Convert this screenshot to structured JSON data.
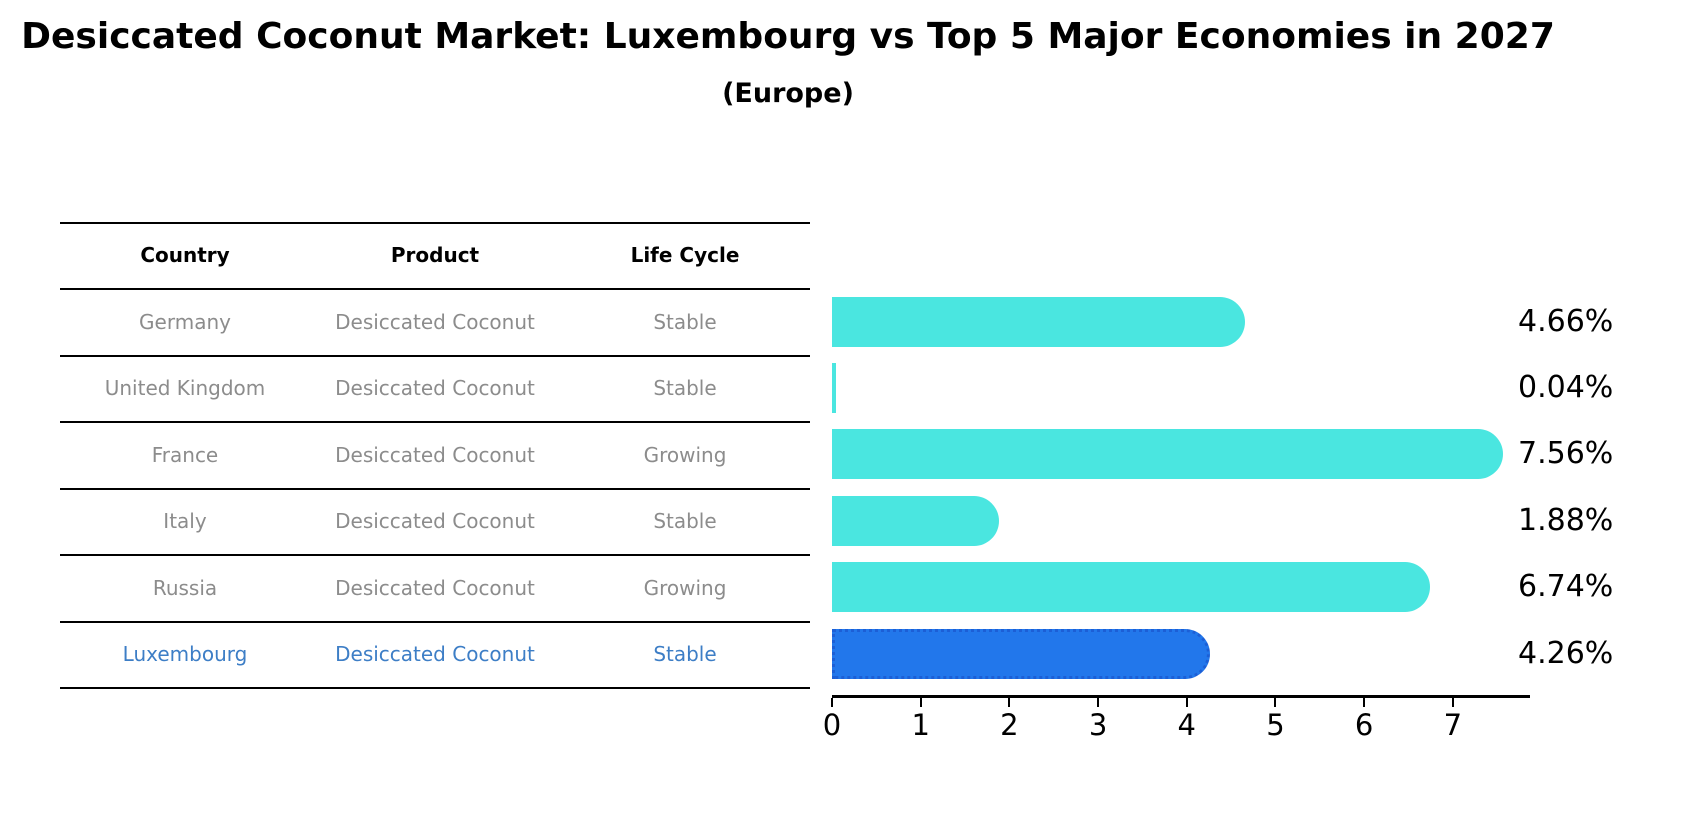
{
  "title": "Desiccated Coconut Market: Luxembourg vs Top 5 Major Economies in 2027",
  "subtitle": "(Europe)",
  "table": {
    "headers": {
      "country": "Country",
      "product": "Product",
      "life_cycle": "Life Cycle"
    },
    "rows": [
      {
        "country": "Germany",
        "product": "Desiccated Coconut",
        "life_cycle": "Stable",
        "highlight": false
      },
      {
        "country": "United Kingdom",
        "product": "Desiccated Coconut",
        "life_cycle": "Stable",
        "highlight": false
      },
      {
        "country": "France",
        "product": "Desiccated Coconut",
        "life_cycle": "Growing",
        "highlight": false
      },
      {
        "country": "Italy",
        "product": "Desiccated Coconut",
        "life_cycle": "Stable",
        "highlight": false
      },
      {
        "country": "Russia",
        "product": "Desiccated Coconut",
        "life_cycle": "Growing",
        "highlight": false
      },
      {
        "country": "Luxembourg",
        "product": "Desiccated Coconut",
        "life_cycle": "Stable",
        "highlight": true
      }
    ]
  },
  "chart_data": {
    "type": "bar",
    "orientation": "horizontal",
    "title": "",
    "xlabel": "",
    "ylabel": "",
    "categories": [
      "Germany",
      "United Kingdom",
      "France",
      "Italy",
      "Russia",
      "Luxembourg"
    ],
    "values": [
      4.66,
      0.04,
      7.56,
      1.88,
      6.74,
      4.26
    ],
    "value_labels": [
      "4.66%",
      "0.04%",
      "7.56%",
      "1.88%",
      "6.74%",
      "4.26%"
    ],
    "x_ticks": [
      0,
      1,
      2,
      3,
      4,
      5,
      6,
      7
    ],
    "xlim": [
      0,
      7.87
    ],
    "grid": false,
    "legend": false,
    "highlight_index": 5,
    "bar_color": "#4AE6E0",
    "highlight_color": "#2277EB",
    "highlight_border_color": "#1C5FD6"
  },
  "colors": {
    "text_black": "#000000",
    "table_text_gray": "#8c8c8c",
    "highlight_text_blue": "#3d7ec6"
  }
}
